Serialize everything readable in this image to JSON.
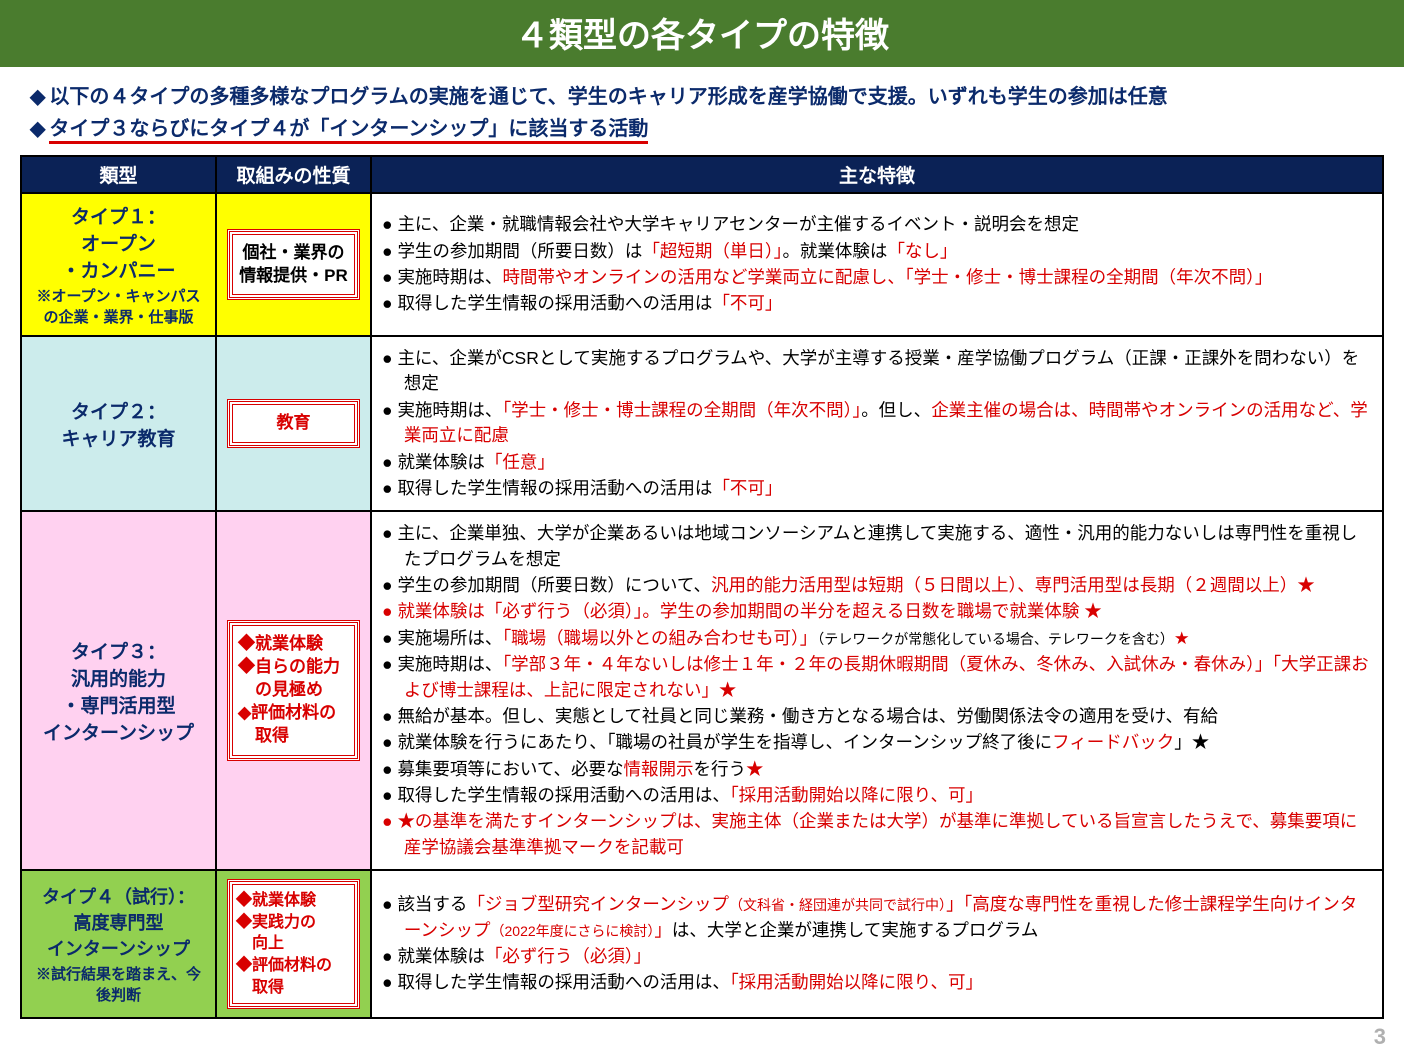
{
  "page_number": "3",
  "title": "４類型の各タイプの特徴",
  "intro": {
    "line1": "以下の４タイプの多種多様なプログラムの実施を通じて、学生のキャリア形成を産学協働で支援。いずれも学生の参加は任意",
    "line2": "タイプ３ならびにタイプ４が「インターンシップ」に該当する活動"
  },
  "columns": {
    "c1": "類型",
    "c2": "取組みの性質",
    "c3": "主な特徴"
  },
  "colors": {
    "title_bg": "#4a7c2e",
    "header_bg": "#0b2256",
    "type1_bg": "#ffff00",
    "type2_bg": "#ccecec",
    "type3_bg": "#ffd1f0",
    "type4_bg": "#92d050",
    "red": "#d80000",
    "navy": "#0b2a6b"
  },
  "rows": {
    "r1": {
      "type_main": "タイプ１：\nオープン\n・カンパニー",
      "type_note": "※オープン・キャンパスの企業・業界・仕事版",
      "nature": "個社・業界の\n情報提供・PR",
      "f1a": "主に、企業・就職情報会社や大学キャリアセンターが主催するイベント・説明会を想定",
      "f2a": "学生の参加期間（所要日数）は",
      "f2b": "「超短期（単日）」",
      "f2c": "。就業体験は",
      "f2d": "「なし」",
      "f3a": "実施時期は、",
      "f3b": "時間帯やオンラインの活用など学業両立に配慮し、「学士・修士・博士課程の全期間（年次不問）」",
      "f4a": "取得した学生情報の採用活動への活用は",
      "f4b": "「不可」"
    },
    "r2": {
      "type_main": "タイプ２：\nキャリア教育",
      "nature": "教育",
      "f1a": "主に、企業がCSRとして実施するプログラムや、大学が主導する授業・産学協働プログラム（正課・正課外を問わない）を想定",
      "f2a": "実施時期は、",
      "f2b": "「学士・修士・博士課程の全期間（年次不問）」",
      "f2c": "。但し、",
      "f2d": "企業主催の場合は、時間帯やオンラインの活用など、学業両立に配慮",
      "f3a": "就業体験は",
      "f3b": "「任意」",
      "f4a": "取得した学生情報の採用活動への活用は",
      "f4b": "「不可」"
    },
    "r3": {
      "type_main": "タイプ３：\n汎用的能力\n・専門活用型\nインターンシップ",
      "nature": "◆就業体験\n◆自らの能力\n　の見極め\n◆評価材料の\n　取得",
      "f1a": "主に、企業単独、大学が企業あるいは地域コンソーシアムと連携して実施する、適性・汎用的能力ないしは専門性を重視したプログラムを想定",
      "f2a": "学生の参加期間（所要日数）について、",
      "f2b": "汎用的能力活用型は短期（５日間以上）、専門活用型は長期（２週間以上）★",
      "f3a": "就業体験は「必ず行う（必須）」。学生の参加期間の半分を超える日数を職場で就業体験 ★",
      "f4a": "実施場所は、",
      "f4b": "「職場（職場以外との組み合わせも可）」",
      "f4c": "（テレワークが常態化している場合、テレワークを含む）",
      "f4d": "★",
      "f5a": "実施時期は、",
      "f5b": "「学部３年・４年ないしは修士１年・２年の長期休暇期間（夏休み、冬休み、入試休み・春休み）」「大学正課および博士課程は、上記に限定されない」★",
      "f6a": "無給が基本。但し、実態として社員と同じ業務・働き方となる場合は、労働関係法令の適用を受け、有給",
      "f7a": "就業体験を行うにあたり、",
      "f7b": "「職場の社員が学生を指導し、インターンシップ終了後に",
      "f7c": "フィードバック",
      "f7d": "」★",
      "f8a": "募集要項等において、必要な",
      "f8b": "情報開示",
      "f8c": "を行う",
      "f8d": "★",
      "f9a": "取得した学生情報の採用活動への活用は、",
      "f9b": "「採用活動開始以降に限り、可」",
      "f10a": "★の基準を満たすインターンシップは、実施主体（企業または大学）が基準に準拠している旨宣言したうえで、募集要項に産学協議会基準準拠マークを記載可"
    },
    "r4": {
      "type_main": "タイプ４（試行）：\n高度専門型\nインターンシップ",
      "type_note": "※試行結果を踏まえ、今後判断",
      "nature": "◆就業体験\n◆実践力の\n　向上\n◆評価材料の\n　取得",
      "f1a": "該当する",
      "f1b": "「ジョブ型研究インターンシップ",
      "f1c": "（文科省・経団連が共同で試行中）",
      "f1d": "」「高度な専門性を重視した修士課程学生向けインターンシップ",
      "f1e": "（2022年度にさらに検討）",
      "f1f": "」",
      "f1g": "は、大学と企業が連携して実施するプログラム",
      "f2a": "就業体験は",
      "f2b": "「必ず行う（必須）」",
      "f3a": "取得した学生情報の採用活動への活用は、",
      "f3b": "「採用活動開始以降に限り、可」"
    }
  }
}
